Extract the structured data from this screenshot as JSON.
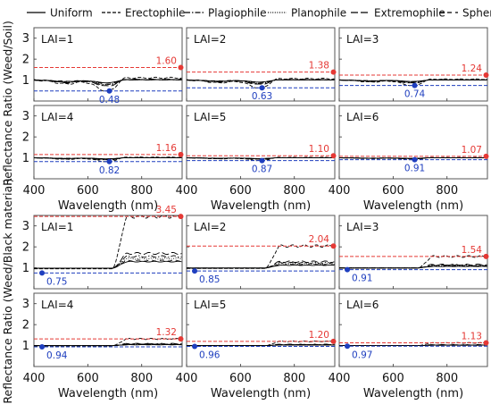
{
  "legend": {
    "items": [
      {
        "label": "Uniform",
        "dash": "solid"
      },
      {
        "label": "Erectophile",
        "dash": "dashed"
      },
      {
        "label": "Plagiophile",
        "dash": "dashdot"
      },
      {
        "label": "Planophile",
        "dash": "dotted"
      },
      {
        "label": "Extremophile",
        "dash": "longdash"
      },
      {
        "label": "Spherical",
        "dash": "sparse-dash"
      }
    ]
  },
  "colors": {
    "max_marker": "#e53935",
    "min_marker": "#1f3fbf",
    "line": "#000000",
    "panel_border": "#555555"
  },
  "chart_data": [
    {
      "group": "Weed/Soil",
      "type": "line",
      "ylabel": "Reflectance Ratio (Weed/Soil)",
      "xlabel": "Wavelength (nm)",
      "xlim": [
        400,
        950
      ],
      "ylim": [
        0,
        3.5
      ],
      "xticks": [
        "400",
        "600",
        "800"
      ],
      "yticks": [
        "1",
        "2",
        "3"
      ],
      "panels": [
        {
          "label": "LAI=1",
          "max": {
            "x": 950,
            "y": 1.6,
            "text": "1.60"
          },
          "min": {
            "x": 680,
            "y": 0.48,
            "text": "0.48"
          }
        },
        {
          "label": "LAI=2",
          "max": {
            "x": 950,
            "y": 1.38,
            "text": "1.38"
          },
          "min": {
            "x": 680,
            "y": 0.63,
            "text": "0.63"
          }
        },
        {
          "label": "LAI=3",
          "max": {
            "x": 950,
            "y": 1.24,
            "text": "1.24"
          },
          "min": {
            "x": 680,
            "y": 0.74,
            "text": "0.74"
          }
        },
        {
          "label": "LAI=4",
          "max": {
            "x": 950,
            "y": 1.16,
            "text": "1.16"
          },
          "min": {
            "x": 680,
            "y": 0.82,
            "text": "0.82"
          }
        },
        {
          "label": "LAI=5",
          "max": {
            "x": 950,
            "y": 1.1,
            "text": "1.10"
          },
          "min": {
            "x": 680,
            "y": 0.87,
            "text": "0.87"
          }
        },
        {
          "label": "LAI=6",
          "max": {
            "x": 950,
            "y": 1.07,
            "text": "1.07"
          },
          "min": {
            "x": 680,
            "y": 0.91,
            "text": "0.91"
          }
        }
      ]
    },
    {
      "group": "Weed/Black material",
      "type": "line",
      "ylabel": "Reflectance Ratio (Weed/Black material)",
      "xlabel": "Wavelength (nm)",
      "xlim": [
        400,
        950
      ],
      "ylim": [
        0,
        3.5
      ],
      "xticks": [
        "400",
        "600",
        "800"
      ],
      "yticks": [
        "1",
        "2",
        "3"
      ],
      "panels": [
        {
          "label": "LAI=1",
          "max": {
            "x": 950,
            "y": 3.45,
            "text": "3.45"
          },
          "min": {
            "x": 430,
            "y": 0.75,
            "text": "0.75"
          }
        },
        {
          "label": "LAI=2",
          "max": {
            "x": 950,
            "y": 2.04,
            "text": "2.04"
          },
          "min": {
            "x": 430,
            "y": 0.85,
            "text": "0.85"
          }
        },
        {
          "label": "LAI=3",
          "max": {
            "x": 950,
            "y": 1.54,
            "text": "1.54"
          },
          "min": {
            "x": 430,
            "y": 0.91,
            "text": "0.91"
          }
        },
        {
          "label": "LAI=4",
          "max": {
            "x": 950,
            "y": 1.32,
            "text": "1.32"
          },
          "min": {
            "x": 430,
            "y": 0.94,
            "text": "0.94"
          }
        },
        {
          "label": "LAI=5",
          "max": {
            "x": 950,
            "y": 1.2,
            "text": "1.20"
          },
          "min": {
            "x": 430,
            "y": 0.96,
            "text": "0.96"
          }
        },
        {
          "label": "LAI=6",
          "max": {
            "x": 950,
            "y": 1.13,
            "text": "1.13"
          },
          "min": {
            "x": 430,
            "y": 0.97,
            "text": "0.97"
          }
        }
      ]
    }
  ]
}
